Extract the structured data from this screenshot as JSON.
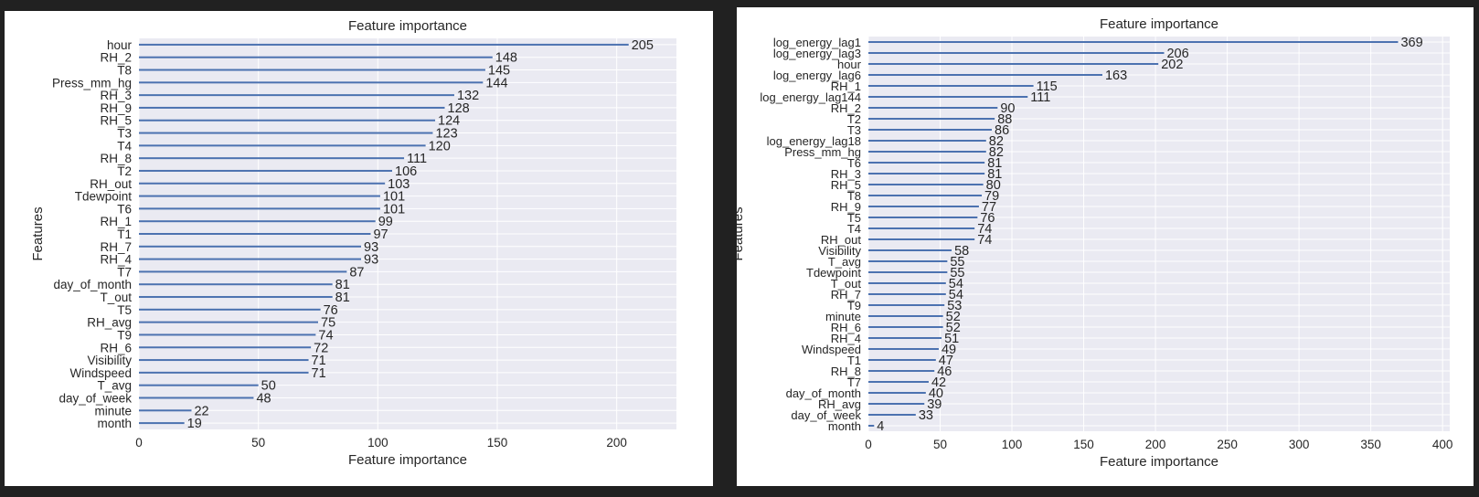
{
  "chart_data": [
    {
      "type": "bar",
      "orientation": "horizontal",
      "title": "Feature importance",
      "xlabel": "Feature importance",
      "ylabel": "Features",
      "xlim": [
        0,
        225
      ],
      "xticks": [
        0,
        50,
        100,
        150,
        200
      ],
      "grid": true,
      "bar_color": "#4c72b0",
      "background_color": "#eaeaf2",
      "categories": [
        "hour",
        "RH_2",
        "T8",
        "Press_mm_hg",
        "RH_3",
        "RH_9",
        "RH_5",
        "T3",
        "T4",
        "RH_8",
        "T2",
        "RH_out",
        "Tdewpoint",
        "T6",
        "RH_1",
        "T1",
        "RH_7",
        "RH_4",
        "T7",
        "day_of_month",
        "T_out",
        "T5",
        "RH_avg",
        "T9",
        "RH_6",
        "Visibility",
        "Windspeed",
        "T_avg",
        "day_of_week",
        "minute",
        "month"
      ],
      "values": [
        205,
        148,
        145,
        144,
        132,
        128,
        124,
        123,
        120,
        111,
        106,
        103,
        101,
        101,
        99,
        97,
        93,
        93,
        87,
        81,
        81,
        76,
        75,
        74,
        72,
        71,
        71,
        50,
        48,
        22,
        19
      ]
    },
    {
      "type": "bar",
      "orientation": "horizontal",
      "title": "Feature importance",
      "xlabel": "Feature importance",
      "ylabel": "Features",
      "xlim": [
        0,
        405
      ],
      "xticks": [
        0,
        50,
        100,
        150,
        200,
        250,
        300,
        350,
        400
      ],
      "grid": true,
      "bar_color": "#4c72b0",
      "background_color": "#eaeaf2",
      "categories": [
        "log_energy_lag1",
        "log_energy_lag3",
        "hour",
        "log_energy_lag6",
        "RH_1",
        "log_energy_lag144",
        "RH_2",
        "T2",
        "T3",
        "log_energy_lag18",
        "Press_mm_hg",
        "T6",
        "RH_3",
        "RH_5",
        "T8",
        "RH_9",
        "T5",
        "T4",
        "RH_out",
        "Visibility",
        "T_avg",
        "Tdewpoint",
        "T_out",
        "RH_7",
        "T9",
        "minute",
        "RH_6",
        "RH_4",
        "Windspeed",
        "T1",
        "RH_8",
        "T7",
        "day_of_month",
        "RH_avg",
        "day_of_week",
        "month"
      ],
      "values": [
        369,
        206,
        202,
        163,
        115,
        111,
        90,
        88,
        86,
        82,
        82,
        81,
        81,
        80,
        79,
        77,
        76,
        74,
        74,
        58,
        55,
        55,
        54,
        54,
        53,
        52,
        52,
        51,
        49,
        47,
        46,
        42,
        40,
        39,
        33,
        4
      ]
    }
  ]
}
